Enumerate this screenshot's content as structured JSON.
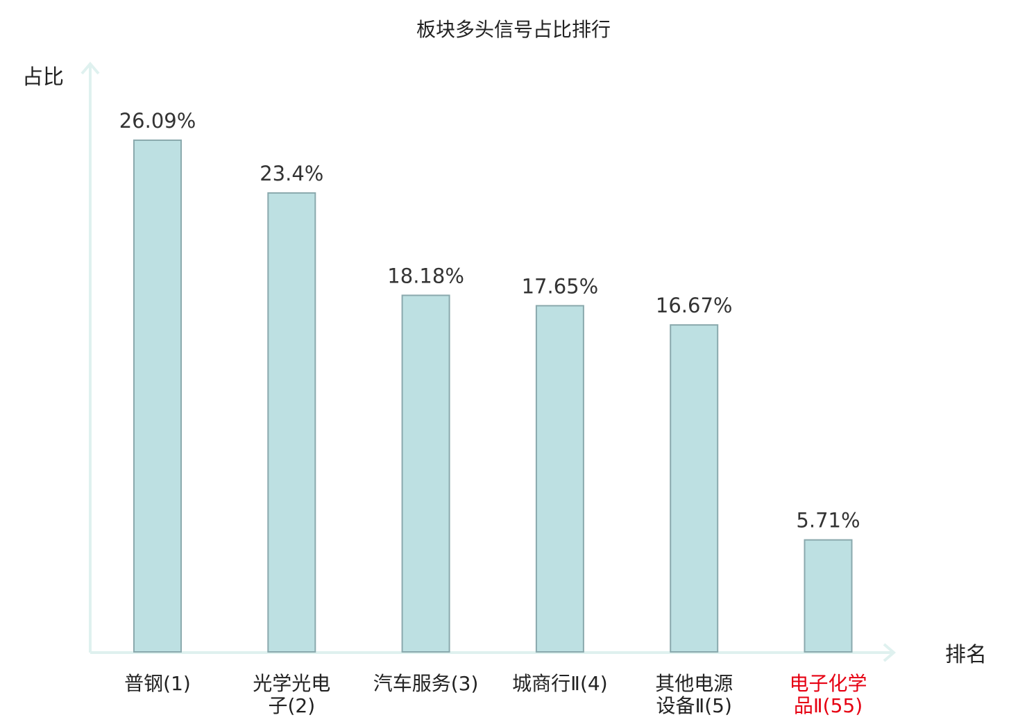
{
  "chart_data": {
    "type": "bar",
    "title": "板块多头信号占比排行",
    "ylabel": "占比",
    "xlabel": "排名",
    "ylim": [
      0,
      30
    ],
    "grid": false,
    "legend": "none",
    "categories": [
      [
        "普钢(1)"
      ],
      [
        "光学光电",
        "子(2)"
      ],
      [
        "汽车服务(3)"
      ],
      [
        "城商行Ⅱ(4)"
      ],
      [
        "其他电源",
        "设备Ⅱ(5)"
      ],
      [
        "电子化学",
        "品Ⅱ(55)"
      ]
    ],
    "values": [
      26.09,
      23.4,
      18.18,
      17.65,
      16.67,
      5.71
    ],
    "value_labels": [
      "26.09%",
      "23.4%",
      "18.18%",
      "17.65%",
      "16.67%",
      "5.71%"
    ],
    "highlight_index": 5,
    "colors": {
      "bar_fill": "#bde0e2",
      "bar_stroke": "#8aa9ad",
      "axis": "#dff1ef",
      "text": "#333333",
      "highlight": "#e60012"
    }
  }
}
